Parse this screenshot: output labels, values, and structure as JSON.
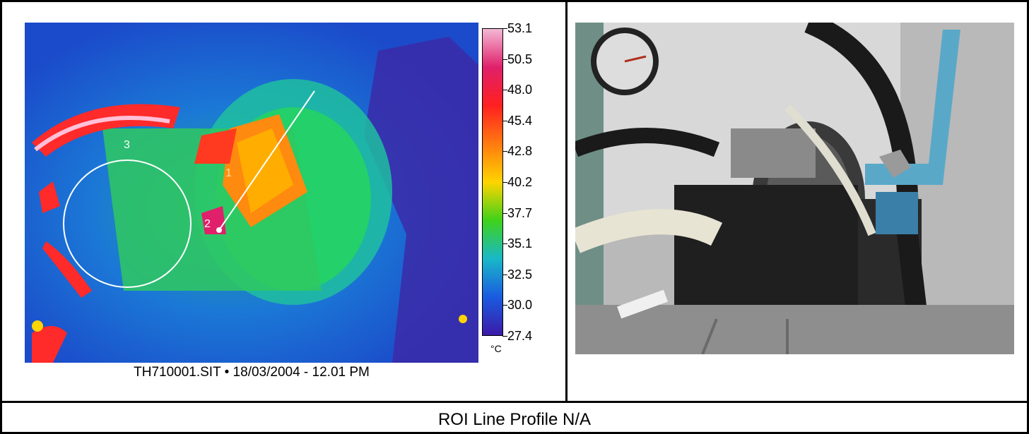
{
  "thermal": {
    "scale_values": [
      "53.1",
      "50.5",
      "48.0",
      "45.4",
      "42.8",
      "40.2",
      "37.7",
      "35.1",
      "32.5",
      "30.0",
      "27.4"
    ],
    "unit": "°C",
    "markers": [
      "1",
      "2",
      "3"
    ],
    "caption": "TH710001.SIT • 18/03/2004 - 12.01 PM",
    "colors": [
      "#f3b8d6",
      "#e0206a",
      "#ff2020",
      "#ff7a10",
      "#ffd400",
      "#3fd21a",
      "#19b8c8",
      "#1a5be0",
      "#3b1aa8"
    ]
  },
  "footer": {
    "title": "ROI Line Profile N/A"
  }
}
